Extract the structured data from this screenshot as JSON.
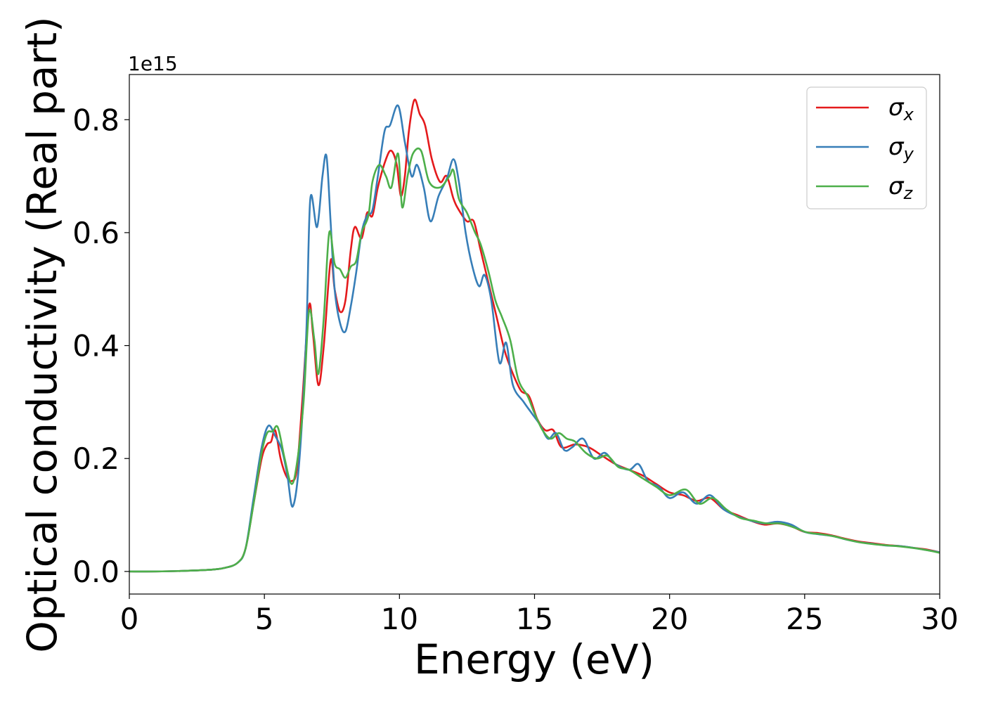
{
  "chart_data": {
    "type": "line",
    "title": "",
    "xlabel": "Energy (eV)",
    "ylabel": "Optical conductivity (Real part)",
    "y_offset_label": "1e15",
    "xlim": [
      0,
      30
    ],
    "ylim": [
      -0.04,
      0.88
    ],
    "x_ticks": [
      0,
      5,
      10,
      15,
      20,
      25,
      30
    ],
    "x_tick_labels": [
      "0",
      "5",
      "10",
      "15",
      "20",
      "25",
      "30"
    ],
    "y_ticks": [
      0.0,
      0.2,
      0.4,
      0.6,
      0.8
    ],
    "y_tick_labels": [
      "0.0",
      "0.2",
      "0.4",
      "0.6",
      "0.8"
    ],
    "grid": false,
    "legend": {
      "placement": "top-right"
    },
    "series": [
      {
        "name": "σx",
        "name_base": "σ",
        "name_sub": "x",
        "color": "#e41a1c",
        "points": [
          [
            0,
            0.0
          ],
          [
            1,
            0.0
          ],
          [
            2,
            0.001
          ],
          [
            3,
            0.003
          ],
          [
            3.5,
            0.006
          ],
          [
            4,
            0.015
          ],
          [
            4.3,
            0.04
          ],
          [
            4.6,
            0.12
          ],
          [
            4.9,
            0.2
          ],
          [
            5.1,
            0.225
          ],
          [
            5.25,
            0.23
          ],
          [
            5.4,
            0.25
          ],
          [
            5.6,
            0.2
          ],
          [
            5.8,
            0.17
          ],
          [
            6.0,
            0.16
          ],
          [
            6.2,
            0.18
          ],
          [
            6.4,
            0.3
          ],
          [
            6.65,
            0.47
          ],
          [
            6.8,
            0.42
          ],
          [
            7.0,
            0.33
          ],
          [
            7.2,
            0.4
          ],
          [
            7.45,
            0.55
          ],
          [
            7.6,
            0.5
          ],
          [
            7.8,
            0.46
          ],
          [
            8.0,
            0.48
          ],
          [
            8.2,
            0.57
          ],
          [
            8.35,
            0.61
          ],
          [
            8.6,
            0.59
          ],
          [
            8.8,
            0.635
          ],
          [
            9.0,
            0.63
          ],
          [
            9.2,
            0.68
          ],
          [
            9.5,
            0.73
          ],
          [
            9.7,
            0.745
          ],
          [
            9.9,
            0.72
          ],
          [
            10.05,
            0.665
          ],
          [
            10.2,
            0.7
          ],
          [
            10.35,
            0.78
          ],
          [
            10.55,
            0.835
          ],
          [
            10.75,
            0.81
          ],
          [
            10.95,
            0.79
          ],
          [
            11.2,
            0.73
          ],
          [
            11.5,
            0.69
          ],
          [
            11.75,
            0.7
          ],
          [
            12.0,
            0.66
          ],
          [
            12.2,
            0.64
          ],
          [
            12.5,
            0.62
          ],
          [
            12.75,
            0.62
          ],
          [
            13.0,
            0.57
          ],
          [
            13.3,
            0.51
          ],
          [
            13.6,
            0.45
          ],
          [
            13.9,
            0.39
          ],
          [
            14.2,
            0.35
          ],
          [
            14.5,
            0.32
          ],
          [
            14.8,
            0.31
          ],
          [
            15.1,
            0.27
          ],
          [
            15.4,
            0.25
          ],
          [
            15.7,
            0.25
          ],
          [
            16.0,
            0.22
          ],
          [
            16.5,
            0.225
          ],
          [
            17.0,
            0.22
          ],
          [
            17.5,
            0.205
          ],
          [
            18.0,
            0.19
          ],
          [
            18.5,
            0.18
          ],
          [
            19.0,
            0.17
          ],
          [
            19.5,
            0.155
          ],
          [
            20.0,
            0.14
          ],
          [
            20.5,
            0.135
          ],
          [
            21.0,
            0.125
          ],
          [
            21.5,
            0.13
          ],
          [
            22.0,
            0.11
          ],
          [
            22.5,
            0.1
          ],
          [
            23.0,
            0.09
          ],
          [
            23.5,
            0.083
          ],
          [
            24.0,
            0.085
          ],
          [
            24.5,
            0.08
          ],
          [
            25.0,
            0.07
          ],
          [
            25.5,
            0.068
          ],
          [
            26.0,
            0.064
          ],
          [
            26.5,
            0.058
          ],
          [
            27.0,
            0.053
          ],
          [
            27.5,
            0.05
          ],
          [
            28.0,
            0.047
          ],
          [
            28.5,
            0.045
          ],
          [
            29.0,
            0.042
          ],
          [
            29.5,
            0.039
          ],
          [
            30.0,
            0.034
          ]
        ]
      },
      {
        "name": "σy",
        "name_base": "σ",
        "name_sub": "y",
        "color": "#377eb8",
        "points": [
          [
            0,
            0.0
          ],
          [
            1,
            0.0
          ],
          [
            2,
            0.001
          ],
          [
            3,
            0.003
          ],
          [
            3.5,
            0.006
          ],
          [
            4,
            0.015
          ],
          [
            4.3,
            0.04
          ],
          [
            4.6,
            0.13
          ],
          [
            4.9,
            0.22
          ],
          [
            5.15,
            0.258
          ],
          [
            5.4,
            0.24
          ],
          [
            5.65,
            0.215
          ],
          [
            5.85,
            0.17
          ],
          [
            6.05,
            0.115
          ],
          [
            6.3,
            0.2
          ],
          [
            6.55,
            0.42
          ],
          [
            6.7,
            0.66
          ],
          [
            6.95,
            0.61
          ],
          [
            7.15,
            0.7
          ],
          [
            7.3,
            0.735
          ],
          [
            7.45,
            0.62
          ],
          [
            7.6,
            0.5
          ],
          [
            7.8,
            0.44
          ],
          [
            8.0,
            0.425
          ],
          [
            8.2,
            0.47
          ],
          [
            8.4,
            0.53
          ],
          [
            8.6,
            0.6
          ],
          [
            8.8,
            0.63
          ],
          [
            9.0,
            0.64
          ],
          [
            9.2,
            0.7
          ],
          [
            9.45,
            0.78
          ],
          [
            9.65,
            0.79
          ],
          [
            9.95,
            0.825
          ],
          [
            10.2,
            0.76
          ],
          [
            10.45,
            0.7
          ],
          [
            10.65,
            0.72
          ],
          [
            10.9,
            0.68
          ],
          [
            11.15,
            0.62
          ],
          [
            11.45,
            0.665
          ],
          [
            11.75,
            0.695
          ],
          [
            12.0,
            0.73
          ],
          [
            12.2,
            0.69
          ],
          [
            12.45,
            0.6
          ],
          [
            12.7,
            0.54
          ],
          [
            12.95,
            0.505
          ],
          [
            13.15,
            0.525
          ],
          [
            13.4,
            0.48
          ],
          [
            13.7,
            0.37
          ],
          [
            13.95,
            0.405
          ],
          [
            14.2,
            0.33
          ],
          [
            14.6,
            0.3
          ],
          [
            14.9,
            0.28
          ],
          [
            15.2,
            0.26
          ],
          [
            15.5,
            0.235
          ],
          [
            15.8,
            0.245
          ],
          [
            16.1,
            0.215
          ],
          [
            16.4,
            0.22
          ],
          [
            16.8,
            0.235
          ],
          [
            17.2,
            0.2
          ],
          [
            17.6,
            0.21
          ],
          [
            18.0,
            0.19
          ],
          [
            18.5,
            0.18
          ],
          [
            18.85,
            0.19
          ],
          [
            19.2,
            0.16
          ],
          [
            19.6,
            0.15
          ],
          [
            20.0,
            0.13
          ],
          [
            20.5,
            0.14
          ],
          [
            21.0,
            0.12
          ],
          [
            21.5,
            0.135
          ],
          [
            22.0,
            0.11
          ],
          [
            22.5,
            0.098
          ],
          [
            23.0,
            0.09
          ],
          [
            23.5,
            0.085
          ],
          [
            24.0,
            0.088
          ],
          [
            24.5,
            0.083
          ],
          [
            25.0,
            0.07
          ],
          [
            25.5,
            0.066
          ],
          [
            26.0,
            0.063
          ],
          [
            26.5,
            0.057
          ],
          [
            27.0,
            0.052
          ],
          [
            27.5,
            0.049
          ],
          [
            28.0,
            0.046
          ],
          [
            28.5,
            0.045
          ],
          [
            29.0,
            0.042
          ],
          [
            29.5,
            0.038
          ],
          [
            30.0,
            0.034
          ]
        ]
      },
      {
        "name": "σz",
        "name_base": "σ",
        "name_sub": "z",
        "color": "#4daf4a",
        "points": [
          [
            0,
            0.0
          ],
          [
            1,
            0.0
          ],
          [
            2,
            0.001
          ],
          [
            3,
            0.003
          ],
          [
            3.5,
            0.006
          ],
          [
            4,
            0.015
          ],
          [
            4.3,
            0.04
          ],
          [
            4.6,
            0.12
          ],
          [
            4.9,
            0.21
          ],
          [
            5.1,
            0.245
          ],
          [
            5.3,
            0.248
          ],
          [
            5.5,
            0.255
          ],
          [
            5.75,
            0.2
          ],
          [
            6.0,
            0.155
          ],
          [
            6.2,
            0.19
          ],
          [
            6.45,
            0.3
          ],
          [
            6.65,
            0.46
          ],
          [
            6.85,
            0.41
          ],
          [
            7.0,
            0.35
          ],
          [
            7.2,
            0.45
          ],
          [
            7.4,
            0.6
          ],
          [
            7.6,
            0.545
          ],
          [
            7.8,
            0.535
          ],
          [
            8.0,
            0.52
          ],
          [
            8.2,
            0.54
          ],
          [
            8.4,
            0.55
          ],
          [
            8.6,
            0.6
          ],
          [
            8.85,
            0.63
          ],
          [
            9.0,
            0.69
          ],
          [
            9.25,
            0.72
          ],
          [
            9.5,
            0.7
          ],
          [
            9.7,
            0.68
          ],
          [
            9.95,
            0.74
          ],
          [
            10.1,
            0.645
          ],
          [
            10.3,
            0.7
          ],
          [
            10.5,
            0.74
          ],
          [
            10.8,
            0.745
          ],
          [
            11.1,
            0.69
          ],
          [
            11.5,
            0.68
          ],
          [
            11.85,
            0.7
          ],
          [
            12.0,
            0.71
          ],
          [
            12.2,
            0.66
          ],
          [
            12.5,
            0.635
          ],
          [
            12.8,
            0.6
          ],
          [
            13.0,
            0.58
          ],
          [
            13.3,
            0.53
          ],
          [
            13.55,
            0.48
          ],
          [
            13.8,
            0.45
          ],
          [
            14.1,
            0.41
          ],
          [
            14.4,
            0.34
          ],
          [
            14.75,
            0.31
          ],
          [
            15.0,
            0.28
          ],
          [
            15.3,
            0.25
          ],
          [
            15.6,
            0.235
          ],
          [
            15.9,
            0.245
          ],
          [
            16.2,
            0.235
          ],
          [
            16.5,
            0.23
          ],
          [
            16.9,
            0.21
          ],
          [
            17.3,
            0.2
          ],
          [
            17.7,
            0.205
          ],
          [
            18.1,
            0.185
          ],
          [
            18.5,
            0.18
          ],
          [
            19.0,
            0.165
          ],
          [
            19.5,
            0.15
          ],
          [
            20.0,
            0.135
          ],
          [
            20.6,
            0.145
          ],
          [
            21.1,
            0.12
          ],
          [
            21.6,
            0.13
          ],
          [
            22.1,
            0.11
          ],
          [
            22.6,
            0.095
          ],
          [
            23.1,
            0.09
          ],
          [
            23.6,
            0.085
          ],
          [
            24.1,
            0.085
          ],
          [
            24.6,
            0.078
          ],
          [
            25.1,
            0.069
          ],
          [
            25.6,
            0.066
          ],
          [
            26.1,
            0.062
          ],
          [
            26.6,
            0.056
          ],
          [
            27.1,
            0.051
          ],
          [
            27.6,
            0.048
          ],
          [
            28.1,
            0.046
          ],
          [
            28.6,
            0.044
          ],
          [
            29.1,
            0.041
          ],
          [
            29.6,
            0.037
          ],
          [
            30.0,
            0.033
          ]
        ]
      }
    ]
  }
}
